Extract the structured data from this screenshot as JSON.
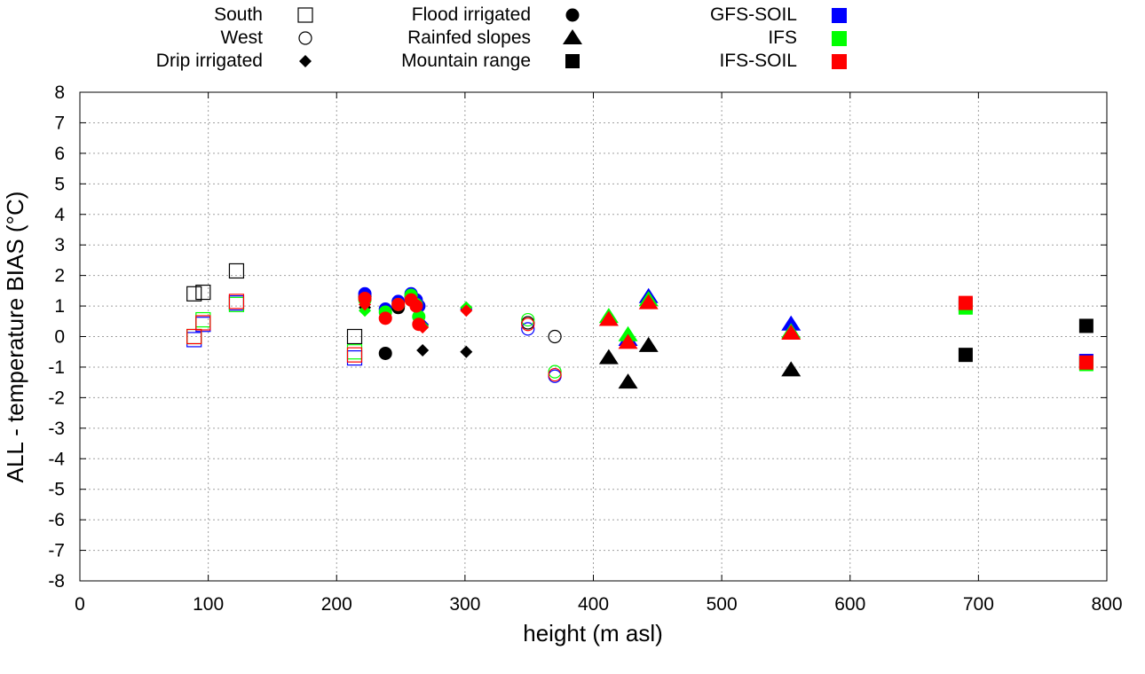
{
  "chart_data": {
    "type": "scatter",
    "title": "",
    "xlabel": "height (m asl)",
    "ylabel": "ALL - temperature BIAS (°C)",
    "xlim": [
      0,
      800
    ],
    "ylim": [
      -8,
      8
    ],
    "xticks": [
      0,
      100,
      200,
      300,
      400,
      500,
      600,
      700,
      800
    ],
    "yticks": [
      -8,
      -7,
      -6,
      -5,
      -4,
      -3,
      -2,
      -1,
      0,
      1,
      2,
      3,
      4,
      5,
      6,
      7,
      8
    ],
    "grid": true,
    "legend_position": "top",
    "legend_regions": [
      {
        "name": "South",
        "symbol": "square-open"
      },
      {
        "name": "West",
        "symbol": "circle-open"
      },
      {
        "name": "Drip irrigated",
        "symbol": "diamond"
      },
      {
        "name": "Flood irrigated",
        "symbol": "circle"
      },
      {
        "name": "Rainfed slopes",
        "symbol": "triangle"
      },
      {
        "name": "Mountain range",
        "symbol": "square"
      }
    ],
    "legend_models": [
      {
        "name": "GFS-SOIL",
        "color": "#0000ff"
      },
      {
        "name": "IFS",
        "color": "#00ff00"
      },
      {
        "name": "IFS-SOIL",
        "color": "#ff0000"
      }
    ],
    "colors": {
      "reference": "#000000",
      "GFS-SOIL": "#0000ff",
      "IFS": "#00ff00",
      "IFS-SOIL": "#ff0000"
    },
    "series": [
      {
        "model": "reference",
        "region": "South",
        "x": [
          89,
          96,
          122,
          214
        ],
        "y": [
          1.4,
          1.45,
          2.15,
          0.0
        ]
      },
      {
        "model": "GFS-SOIL",
        "region": "South",
        "x": [
          89,
          96,
          122,
          214
        ],
        "y": [
          -0.1,
          0.4,
          1.1,
          -0.7
        ]
      },
      {
        "model": "IFS",
        "region": "South",
        "x": [
          89,
          96,
          122,
          214
        ],
        "y": [
          0.0,
          0.55,
          1.05,
          -0.5
        ]
      },
      {
        "model": "IFS-SOIL",
        "region": "South",
        "x": [
          89,
          96,
          122,
          214
        ],
        "y": [
          0.0,
          0.45,
          1.15,
          -0.6
        ]
      },
      {
        "model": "reference",
        "region": "West",
        "x": [
          349,
          370
        ],
        "y": [
          0.45,
          0.0
        ]
      },
      {
        "model": "GFS-SOIL",
        "region": "West",
        "x": [
          349,
          370
        ],
        "y": [
          0.25,
          -1.3
        ]
      },
      {
        "model": "IFS",
        "region": "West",
        "x": [
          349,
          370
        ],
        "y": [
          0.55,
          -1.15
        ]
      },
      {
        "model": "IFS-SOIL",
        "region": "West",
        "x": [
          349,
          370
        ],
        "y": [
          0.4,
          -1.25
        ]
      },
      {
        "model": "reference",
        "region": "Drip irrigated",
        "x": [
          222,
          267,
          301
        ],
        "y": [
          0.95,
          -0.45,
          -0.5
        ]
      },
      {
        "model": "GFS-SOIL",
        "region": "Drip irrigated",
        "x": [
          222,
          267,
          301
        ],
        "y": [
          1.3,
          0.4,
          0.9
        ]
      },
      {
        "model": "IFS",
        "region": "Drip irrigated",
        "x": [
          222,
          267,
          301
        ],
        "y": [
          0.85,
          0.35,
          0.95
        ]
      },
      {
        "model": "IFS-SOIL",
        "region": "Drip irrigated",
        "x": [
          222,
          267,
          301
        ],
        "y": [
          1.05,
          0.3,
          0.85
        ]
      },
      {
        "model": "reference",
        "region": "Flood irrigated",
        "x": [
          222,
          238,
          248,
          258,
          262,
          264
        ],
        "y": [
          1.3,
          -0.55,
          0.95,
          1.3,
          1.1,
          1.0
        ]
      },
      {
        "model": "GFS-SOIL",
        "region": "Flood irrigated",
        "x": [
          222,
          238,
          248,
          258,
          262,
          264
        ],
        "y": [
          1.4,
          0.9,
          1.15,
          1.4,
          1.2,
          1.0
        ]
      },
      {
        "model": "IFS",
        "region": "Flood irrigated",
        "x": [
          222,
          238,
          248,
          258,
          262,
          264
        ],
        "y": [
          1.2,
          0.8,
          1.05,
          1.35,
          1.05,
          0.65
        ]
      },
      {
        "model": "IFS-SOIL",
        "region": "Flood irrigated",
        "x": [
          222,
          238,
          248,
          258,
          262,
          264
        ],
        "y": [
          1.25,
          0.6,
          1.05,
          1.2,
          1.0,
          0.4
        ]
      },
      {
        "model": "reference",
        "region": "Rainfed slopes",
        "x": [
          412,
          427,
          443,
          554
        ],
        "y": [
          -0.7,
          -1.5,
          -0.3,
          -1.1
        ]
      },
      {
        "model": "GFS-SOIL",
        "region": "Rainfed slopes",
        "x": [
          412,
          427,
          443,
          554
        ],
        "y": [
          0.55,
          -0.1,
          1.3,
          0.4
        ]
      },
      {
        "model": "IFS",
        "region": "Rainfed slopes",
        "x": [
          412,
          427,
          443,
          554
        ],
        "y": [
          0.65,
          0.05,
          1.2,
          0.15
        ]
      },
      {
        "model": "IFS-SOIL",
        "region": "Rainfed slopes",
        "x": [
          412,
          427,
          443,
          554
        ],
        "y": [
          0.55,
          -0.2,
          1.1,
          0.1
        ]
      },
      {
        "model": "reference",
        "region": "Mountain range",
        "x": [
          690,
          784
        ],
        "y": [
          -0.6,
          0.35
        ]
      },
      {
        "model": "GFS-SOIL",
        "region": "Mountain range",
        "x": [
          690,
          784
        ],
        "y": [
          1.05,
          -0.8
        ]
      },
      {
        "model": "IFS",
        "region": "Mountain range",
        "x": [
          690,
          784
        ],
        "y": [
          0.95,
          -0.9
        ]
      },
      {
        "model": "IFS-SOIL",
        "region": "Mountain range",
        "x": [
          690,
          784
        ],
        "y": [
          1.1,
          -0.85
        ]
      }
    ]
  }
}
